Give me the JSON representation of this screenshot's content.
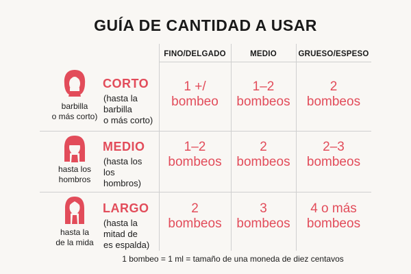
{
  "title": "GUÍA DE CANTIDAD A USAR",
  "columns": [
    "FINO/DELGADO",
    "MEDIO",
    "GRUESO/ESPESO"
  ],
  "rows": [
    {
      "icon": "short-hair-icon",
      "caption": [
        "barbilla",
        "o más corto)"
      ],
      "name": "CORTO",
      "desc": [
        "(hasta la",
        "barbilla",
        "o más corto)"
      ],
      "cells": [
        [
          "1 +/",
          "bombeo"
        ],
        [
          "1–2",
          "bombeos"
        ],
        [
          "2",
          "bombeos"
        ]
      ]
    },
    {
      "icon": "medium-hair-icon",
      "caption": [
        "hasta los",
        "hombros"
      ],
      "name": "MEDIO",
      "desc": [
        "(hasta los",
        "los",
        "hombros)"
      ],
      "cells": [
        [
          "1–2",
          "bombeos"
        ],
        [
          "2",
          "bombeos"
        ],
        [
          "2–3",
          "bombeos"
        ]
      ]
    },
    {
      "icon": "long-hair-icon",
      "caption": [
        "hasta la",
        "de la mida"
      ],
      "name": "LARGO",
      "desc": [
        "(hasta la",
        "mitad de",
        "es espalda)"
      ],
      "cells": [
        [
          "2",
          "bombeos"
        ],
        [
          "3",
          "bombeos"
        ],
        [
          "4 o más",
          "bombeos"
        ]
      ]
    }
  ],
  "footnote": "1 bombeo = 1 ml = tamaño de una moneda de diez centavos",
  "colors": {
    "accent": "#e24c5a",
    "text": "#1a1a1a",
    "background": "#f9f7f4",
    "grid": "#cfcfcf"
  }
}
